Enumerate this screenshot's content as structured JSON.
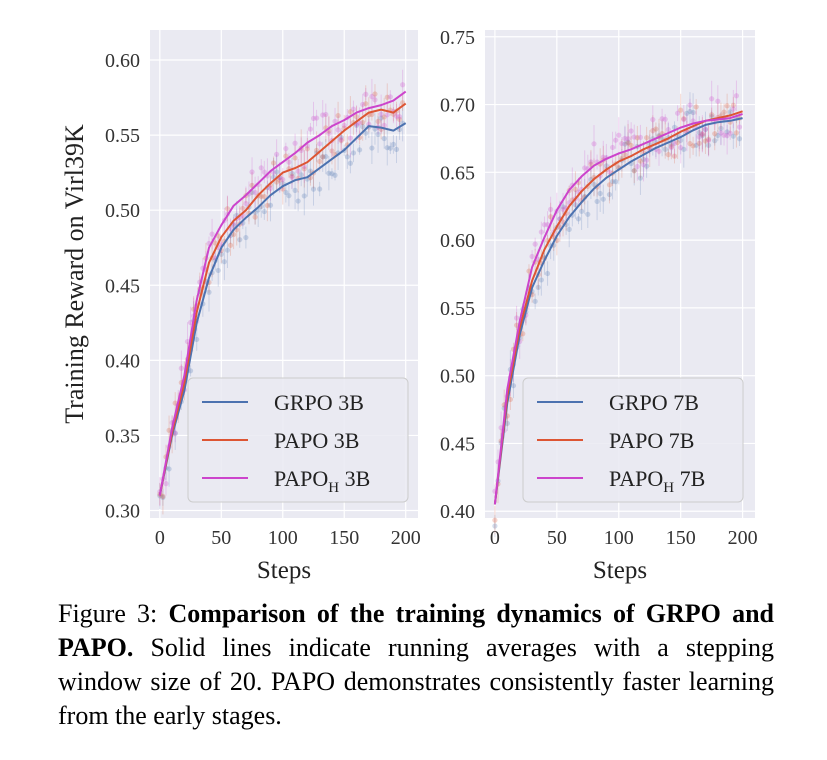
{
  "figure": {
    "caption": {
      "label": "Figure 3:",
      "bold": "Comparison of the training dynamics of GRPO and PAPO.",
      "text": "Solid lines indicate running averages with a stepping window size of 20. PAPO demonstrates consistently faster learning from the early stages."
    },
    "colors": {
      "grpo": "#4c72b0",
      "papo": "#dd5533",
      "papo_h": "#cc44cc",
      "panel_bg": "#eaeaf2",
      "grid": "#ffffff"
    }
  },
  "chart_data": [
    {
      "type": "line",
      "xlabel": "Steps",
      "ylabel": "Training Reward on Virl39K",
      "xlim": [
        -8,
        210
      ],
      "ylim": [
        0.295,
        0.62
      ],
      "xticks": [
        0,
        50,
        100,
        150,
        200
      ],
      "yticks": [
        0.3,
        0.35,
        0.4,
        0.45,
        0.5,
        0.55,
        0.6
      ],
      "grid": true,
      "legend": "lower-right",
      "x": [
        0,
        10,
        20,
        30,
        40,
        50,
        60,
        70,
        80,
        90,
        100,
        110,
        120,
        130,
        140,
        150,
        160,
        170,
        180,
        190,
        200
      ],
      "series": [
        {
          "name": "GRPO 3B",
          "legend_main": "GRPO",
          "legend_sub": "",
          "legend_tail": " 3B",
          "color": "#4c72b0",
          "values": [
            0.31,
            0.35,
            0.38,
            0.425,
            0.455,
            0.475,
            0.487,
            0.495,
            0.502,
            0.51,
            0.516,
            0.52,
            0.522,
            0.528,
            0.534,
            0.54,
            0.548,
            0.556,
            0.555,
            0.553,
            0.558
          ]
        },
        {
          "name": "PAPO 3B",
          "legend_main": "PAPO",
          "legend_sub": "",
          "legend_tail": " 3B",
          "color": "#dd5533",
          "values": [
            0.31,
            0.352,
            0.385,
            0.432,
            0.465,
            0.482,
            0.493,
            0.5,
            0.51,
            0.518,
            0.525,
            0.528,
            0.532,
            0.539,
            0.546,
            0.553,
            0.559,
            0.565,
            0.567,
            0.565,
            0.571
          ]
        },
        {
          "name": "PAPO_H 3B",
          "legend_main": "PAPO",
          "legend_sub": "H",
          "legend_tail": " 3B",
          "color": "#cc44cc",
          "values": [
            0.31,
            0.355,
            0.39,
            0.44,
            0.475,
            0.49,
            0.503,
            0.51,
            0.518,
            0.526,
            0.532,
            0.538,
            0.545,
            0.55,
            0.556,
            0.56,
            0.565,
            0.568,
            0.57,
            0.573,
            0.579
          ]
        }
      ]
    },
    {
      "type": "line",
      "xlabel": "Steps",
      "ylabel": "",
      "xlim": [
        -8,
        210
      ],
      "ylim": [
        0.395,
        0.755
      ],
      "xticks": [
        0,
        50,
        100,
        150,
        200
      ],
      "yticks": [
        0.4,
        0.45,
        0.5,
        0.55,
        0.6,
        0.65,
        0.7,
        0.75
      ],
      "grid": true,
      "legend": "lower-right",
      "x": [
        0,
        10,
        20,
        30,
        40,
        50,
        60,
        70,
        80,
        90,
        100,
        110,
        120,
        130,
        140,
        150,
        160,
        170,
        180,
        190,
        200
      ],
      "series": [
        {
          "name": "GRPO 7B",
          "legend_main": "GRPO",
          "legend_sub": "",
          "legend_tail": " 7B",
          "color": "#4c72b0",
          "values": [
            0.405,
            0.48,
            0.53,
            0.565,
            0.585,
            0.603,
            0.617,
            0.628,
            0.638,
            0.646,
            0.652,
            0.658,
            0.663,
            0.668,
            0.672,
            0.676,
            0.681,
            0.685,
            0.687,
            0.688,
            0.69
          ]
        },
        {
          "name": "PAPO 7B",
          "legend_main": "PAPO",
          "legend_sub": "",
          "legend_tail": " 7B",
          "color": "#dd5533",
          "values": [
            0.405,
            0.485,
            0.535,
            0.57,
            0.593,
            0.61,
            0.625,
            0.636,
            0.645,
            0.652,
            0.658,
            0.662,
            0.667,
            0.671,
            0.675,
            0.68,
            0.684,
            0.688,
            0.69,
            0.692,
            0.695
          ]
        },
        {
          "name": "PAPO_H 7B",
          "legend_main": "PAPO",
          "legend_sub": "H",
          "legend_tail": " 7B",
          "color": "#cc44cc",
          "values": [
            0.405,
            0.49,
            0.54,
            0.58,
            0.602,
            0.622,
            0.637,
            0.647,
            0.655,
            0.66,
            0.664,
            0.667,
            0.671,
            0.675,
            0.679,
            0.683,
            0.686,
            0.688,
            0.689,
            0.69,
            0.693
          ]
        }
      ]
    }
  ]
}
